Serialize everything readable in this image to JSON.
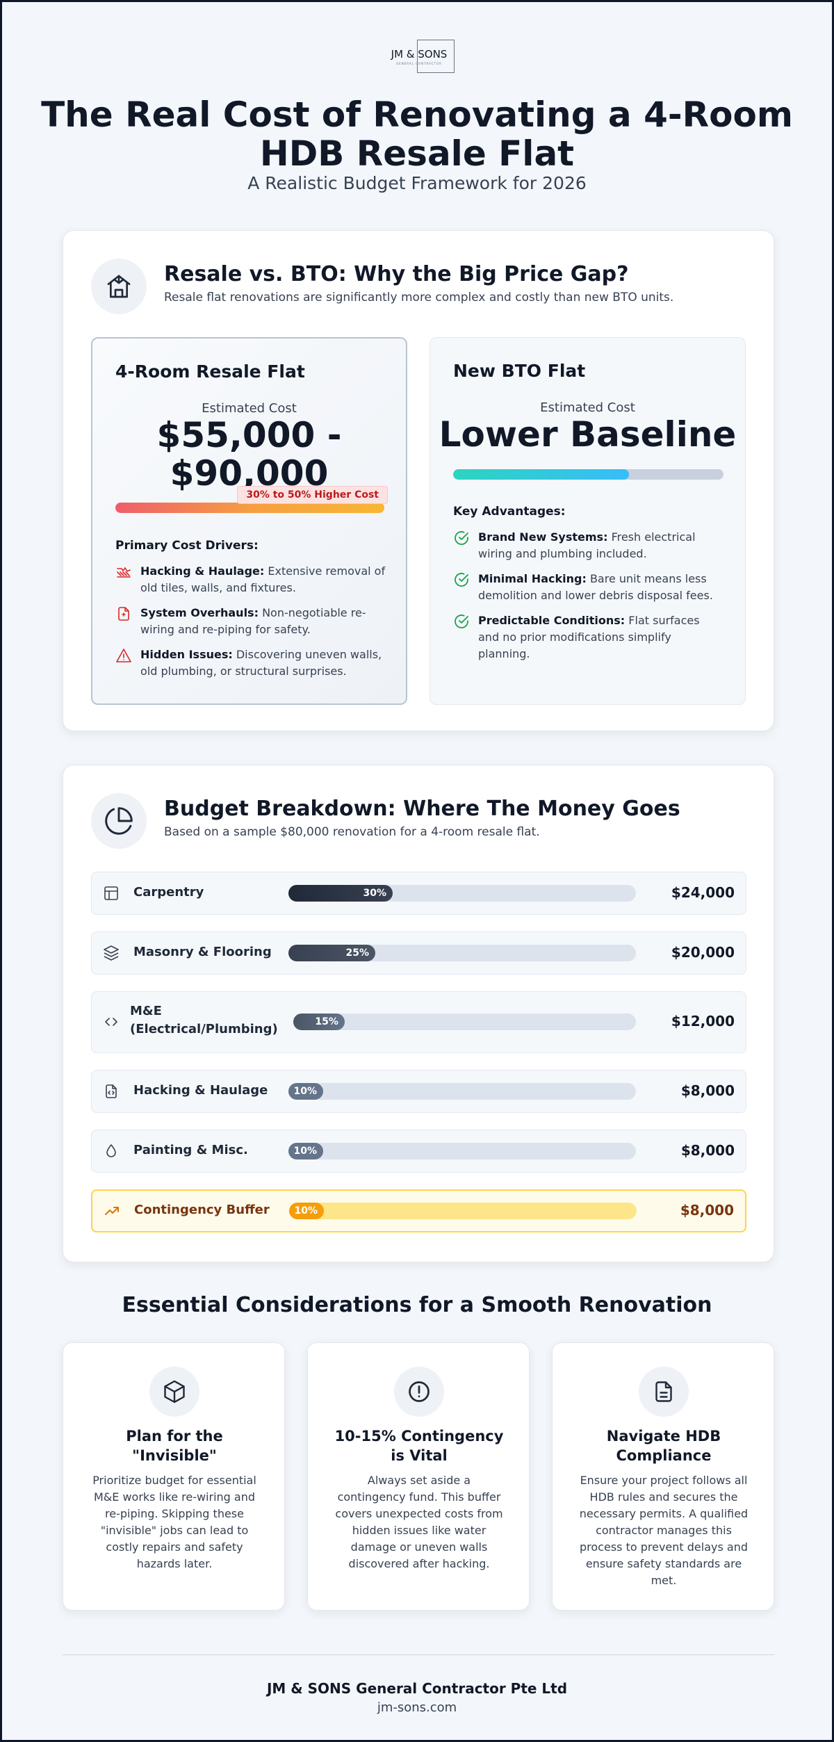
{
  "logo": {
    "name": "JM & SONS",
    "sub": "GENERAL CONTRACTOR"
  },
  "header": {
    "title": "The Real Cost of Renovating a 4-Room HDB Resale Flat",
    "subtitle": "A Realistic Budget Framework for 2026"
  },
  "compare": {
    "icon": "house-icon",
    "title": "Resale vs. BTO: Why the Big Price Gap?",
    "subtitle": "Resale flat renovations are significantly more complex and costly than new BTO units.",
    "resale": {
      "title": "4-Room Resale Flat",
      "est_label": "Estimated Cost",
      "price_line1": "$55,000 -",
      "price_line2": "$90,000",
      "badge": "30% to 50% Higher Cost",
      "drivers_heading": "Primary Cost Drivers:",
      "drivers": [
        {
          "icon": "hacking-icon",
          "bold": "Hacking & Haulage:",
          "text": "Extensive removal of old tiles, walls, and fixtures."
        },
        {
          "icon": "system-file-icon",
          "bold": "System Overhauls:",
          "text": "Non-negotiable re-wiring and re-piping for safety."
        },
        {
          "icon": "warning-icon",
          "bold": "Hidden Issues:",
          "text": "Discovering uneven walls, old plumbing, or structural surprises."
        }
      ]
    },
    "bto": {
      "title": "New BTO Flat",
      "est_label": "Estimated Cost",
      "price": "Lower Baseline",
      "advantages_heading": "Key Advantages:",
      "advantages": [
        {
          "icon": "check-circle-icon",
          "bold": "Brand New Systems:",
          "text": "Fresh electrical wiring and plumbing included."
        },
        {
          "icon": "check-circle-icon",
          "bold": "Minimal Hacking:",
          "text": "Bare unit means less demolition and lower debris disposal fees."
        },
        {
          "icon": "check-circle-icon",
          "bold": "Predictable Conditions:",
          "text": "Flat surfaces and no prior modifications simplify planning."
        }
      ]
    }
  },
  "breakdown": {
    "icon": "pie-chart-icon",
    "title": "Budget Breakdown: Where The Money Goes",
    "subtitle": "Based on a sample $80,000 renovation for a 4-room resale flat.",
    "rows": [
      {
        "icon": "layout-icon",
        "label": "Carpentry",
        "percent": 30,
        "percent_label": "30%",
        "amount": "$24,000"
      },
      {
        "icon": "layers-icon",
        "label": "Masonry & Flooring",
        "percent": 25,
        "percent_label": "25%",
        "amount": "$20,000"
      },
      {
        "icon": "code-icon",
        "label": "M&E (Electrical/Plumbing)",
        "percent": 15,
        "percent_label": "15%",
        "amount": "$12,000"
      },
      {
        "icon": "file-code-icon",
        "label": "Hacking & Haulage",
        "percent": 10,
        "percent_label": "10%",
        "amount": "$8,000"
      },
      {
        "icon": "droplet-icon",
        "label": "Painting & Misc.",
        "percent": 10,
        "percent_label": "10%",
        "amount": "$8,000"
      },
      {
        "icon": "trending-up-icon",
        "label": "Contingency Buffer",
        "percent": 10,
        "percent_label": "10%",
        "amount": "$8,000"
      }
    ]
  },
  "essentials": {
    "title": "Essential Considerations for a Smooth Renovation",
    "cards": [
      {
        "icon": "box-icon",
        "title": "Plan for the \"Invisible\"",
        "text": "Prioritize budget for essential M&E works like re-wiring and re-piping. Skipping these \"invisible\" jobs can lead to costly repairs and safety hazards later."
      },
      {
        "icon": "alert-circle-icon",
        "title": "10-15% Contingency is Vital",
        "text": "Always set aside a contingency fund. This buffer covers unexpected costs from hidden issues like water damage or uneven walls discovered after hacking."
      },
      {
        "icon": "document-icon",
        "title": "Navigate HDB Compliance",
        "text": "Ensure your project follows all HDB rules and secures the necessary permits. A qualified contractor manages this process to prevent delays and ensure safety standards are met."
      }
    ]
  },
  "footer": {
    "company": "JM & SONS General Contractor Pte Ltd",
    "website": "jm-sons.com"
  }
}
